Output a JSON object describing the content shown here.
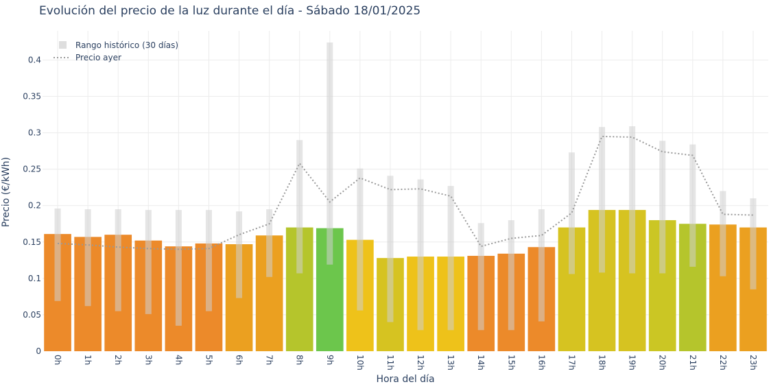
{
  "chart_data": {
    "type": "bar",
    "title": "Evolución del precio de la luz durante el día - Sábado 18/01/2025",
    "xlabel": "Hora del día",
    "ylabel": "Precio (€/kWh)",
    "categories": [
      "0h",
      "1h",
      "2h",
      "3h",
      "4h",
      "5h",
      "6h",
      "7h",
      "8h",
      "9h",
      "10h",
      "11h",
      "12h",
      "13h",
      "14h",
      "15h",
      "16h",
      "17h",
      "18h",
      "19h",
      "20h",
      "21h",
      "22h",
      "23h"
    ],
    "ylim": [
      0,
      0.44
    ],
    "yticks": [
      0,
      0.05,
      0.1,
      0.15,
      0.2,
      0.25,
      0.3,
      0.35,
      0.4
    ],
    "ytick_labels": [
      "0",
      "0.05",
      "0.1",
      "0.15",
      "0.2",
      "0.25",
      "0.3",
      "0.35",
      "0.4"
    ],
    "grid": true,
    "legend_position": "top-left",
    "series": [
      {
        "kind": "bar",
        "values": [
          0.161,
          0.157,
          0.16,
          0.152,
          0.144,
          0.148,
          0.147,
          0.159,
          0.17,
          0.169,
          0.153,
          0.128,
          0.13,
          0.13,
          0.131,
          0.134,
          0.143,
          0.17,
          0.194,
          0.194,
          0.18,
          0.175,
          0.174,
          0.17
        ],
        "colors": [
          "#ec8a2a",
          "#ec8a2a",
          "#ec8a2a",
          "#ec8a2a",
          "#ec8a2a",
          "#ec8a2a",
          "#eba020",
          "#eba020",
          "#b5c52c",
          "#6cc64c",
          "#eec21a",
          "#d6c321",
          "#eec21a",
          "#eec21a",
          "#ec8a2a",
          "#ec8a2a",
          "#ec8a2a",
          "#d6c321",
          "#d6c321",
          "#d6c321",
          "#cbc624",
          "#b5c52c",
          "#eba020",
          "#eba020"
        ]
      },
      {
        "name": "Rango histórico (30 días)",
        "kind": "range",
        "low": [
          0.069,
          0.062,
          0.055,
          0.051,
          0.035,
          0.055,
          0.073,
          0.102,
          0.107,
          0.119,
          0.056,
          0.04,
          0.029,
          0.029,
          0.029,
          0.029,
          0.041,
          0.106,
          0.108,
          0.107,
          0.107,
          0.116,
          0.103,
          0.085
        ],
        "high": [
          0.196,
          0.195,
          0.195,
          0.194,
          0.194,
          0.194,
          0.192,
          0.195,
          0.29,
          0.424,
          0.251,
          0.241,
          0.236,
          0.227,
          0.176,
          0.18,
          0.195,
          0.273,
          0.308,
          0.309,
          0.289,
          0.284,
          0.22,
          0.21
        ],
        "color": "#cfcfcf"
      },
      {
        "name": "Precio ayer",
        "kind": "line",
        "values": [
          0.148,
          0.146,
          0.143,
          0.141,
          0.14,
          0.141,
          0.16,
          0.175,
          0.258,
          0.205,
          0.238,
          0.222,
          0.223,
          0.213,
          0.144,
          0.155,
          0.159,
          0.19,
          0.295,
          0.294,
          0.274,
          0.269,
          0.188,
          0.187
        ],
        "color": "#999999",
        "style": "dotted"
      }
    ]
  }
}
